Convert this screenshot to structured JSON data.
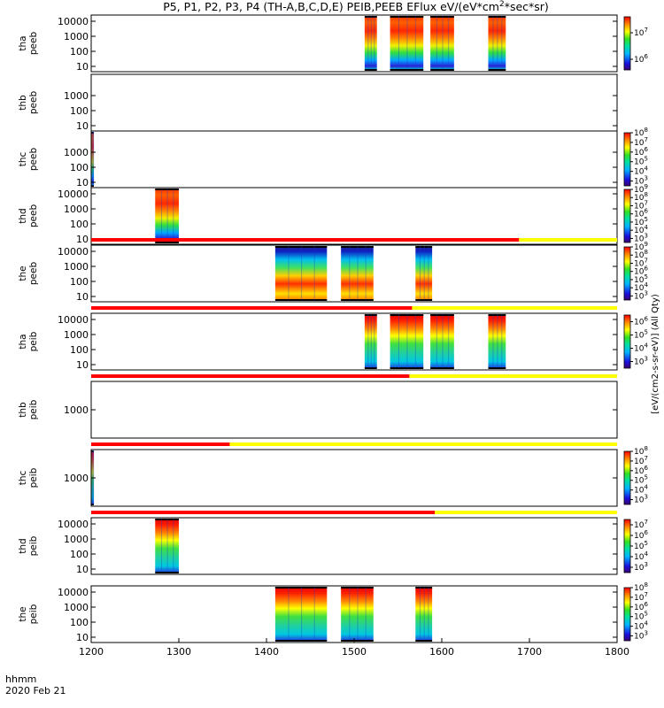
{
  "chart_data": {
    "type": "heatmap",
    "title": "P5, P1, P2, P3, P4 (TH-A,B,C,D,E) PEIB,PEEB EFlux eV/(eV*cm^2*sec*sr)",
    "title_parts": {
      "main": "P5, P1, P2, P3, P4 (TH-A,B,C,D,E) PEIB,PEEB EFlux eV/(eV*cm",
      "sup": "2",
      "tail": "*sec*sr)"
    },
    "xlabel": "hhmm",
    "date_label": "2020 Feb 21",
    "xlim": [
      1200,
      1800
    ],
    "x_ticks": [
      "1200",
      "1300",
      "1400",
      "1500",
      "1600",
      "1700",
      "1800"
    ],
    "colorbar_label": "[eV/(cm2-s-sr-eV)] (All Qty)",
    "panels": [
      {
        "label1": "tha",
        "label2": "peeb",
        "yticks": [
          "10",
          "100",
          "1000",
          "10000"
        ],
        "bar_ticks": [
          "10^6",
          "10^7"
        ],
        "bar_min": 5.6,
        "bar_max": 7.6,
        "data_blocks": [
          [
            1512,
            1526
          ],
          [
            1541,
            1579
          ],
          [
            1587,
            1614
          ],
          [
            1653,
            1673
          ]
        ],
        "band": null
      },
      {
        "label1": "thb",
        "label2": "peeb",
        "yticks": [
          "10",
          "100",
          "1000"
        ],
        "bar_ticks": [],
        "bar_min": 0,
        "bar_max": 1,
        "data_blocks": [],
        "band": null
      },
      {
        "label1": "thc",
        "label2": "peeb",
        "yticks": [
          "10",
          "100",
          "1000"
        ],
        "bar_ticks": [
          "10^3",
          "10^4",
          "10^5",
          "10^6",
          "10^7",
          "10^8"
        ],
        "bar_min": 2.5,
        "bar_max": 8,
        "data_blocks": [
          [
            1200,
            1203
          ]
        ],
        "band": null
      },
      {
        "label1": "thd",
        "label2": "peeb",
        "yticks": [
          "10",
          "100",
          "1000",
          "10000"
        ],
        "bar_ticks": [
          "10^3",
          "10^4",
          "10^5",
          "10^6",
          "10^7",
          "10^8",
          "10^9"
        ],
        "bar_min": 2.5,
        "bar_max": 9,
        "data_blocks": [
          [
            1273,
            1300
          ]
        ],
        "band": null
      },
      {
        "label1": "the",
        "label2": "peeb",
        "yticks": [
          "10",
          "100",
          "1000",
          "10000"
        ],
        "bar_ticks": [
          "10^3",
          "10^4",
          "10^5",
          "10^6",
          "10^7",
          "10^8",
          "10^9"
        ],
        "bar_min": 2.5,
        "bar_max": 9,
        "data_blocks": [
          [
            1410,
            1469
          ],
          [
            1485,
            1522
          ],
          [
            1570,
            1589
          ]
        ],
        "band": {
          "red_end": 1688
        }
      },
      {
        "label1": "tha",
        "label2": "peib",
        "yticks": [
          "10",
          "100",
          "1000",
          "10000"
        ],
        "bar_ticks": [
          "10^3",
          "10^4",
          "10^5",
          "10^6"
        ],
        "bar_min": 2.5,
        "bar_max": 6.5,
        "data_blocks": [
          [
            1512,
            1526
          ],
          [
            1541,
            1579
          ],
          [
            1587,
            1614
          ],
          [
            1653,
            1673
          ]
        ],
        "band": {
          "red_end": 1566
        }
      },
      {
        "label1": "thb",
        "label2": "peib",
        "yticks": [
          "1000"
        ],
        "bar_ticks": [],
        "bar_min": 0,
        "bar_max": 1,
        "data_blocks": [],
        "band": {
          "red_end": 1563
        }
      },
      {
        "label1": "thc",
        "label2": "peib",
        "yticks": [
          "1000"
        ],
        "bar_ticks": [
          "10^3",
          "10^4",
          "10^5",
          "10^6",
          "10^7",
          "10^8"
        ],
        "bar_min": 2.5,
        "bar_max": 8,
        "data_blocks": [
          [
            1200,
            1203
          ]
        ],
        "band": {
          "red_end": 1358
        }
      },
      {
        "label1": "thd",
        "label2": "peib",
        "yticks": [
          "10",
          "100",
          "1000",
          "10000"
        ],
        "bar_ticks": [
          "10^3",
          "10^4",
          "10^5",
          "10^6",
          "10^7"
        ],
        "bar_min": 2.5,
        "bar_max": 7.5,
        "data_blocks": [
          [
            1273,
            1300
          ]
        ],
        "band": {
          "red_end": 1592
        }
      },
      {
        "label1": "the",
        "label2": "peib",
        "yticks": [
          "10",
          "100",
          "1000",
          "10000"
        ],
        "bar_ticks": [
          "10^3",
          "10^4",
          "10^5",
          "10^6",
          "10^7",
          "10^8"
        ],
        "bar_min": 2.5,
        "bar_max": 8,
        "data_blocks": [
          [
            1410,
            1469
          ],
          [
            1485,
            1522
          ],
          [
            1570,
            1589
          ]
        ],
        "band": null
      }
    ]
  }
}
